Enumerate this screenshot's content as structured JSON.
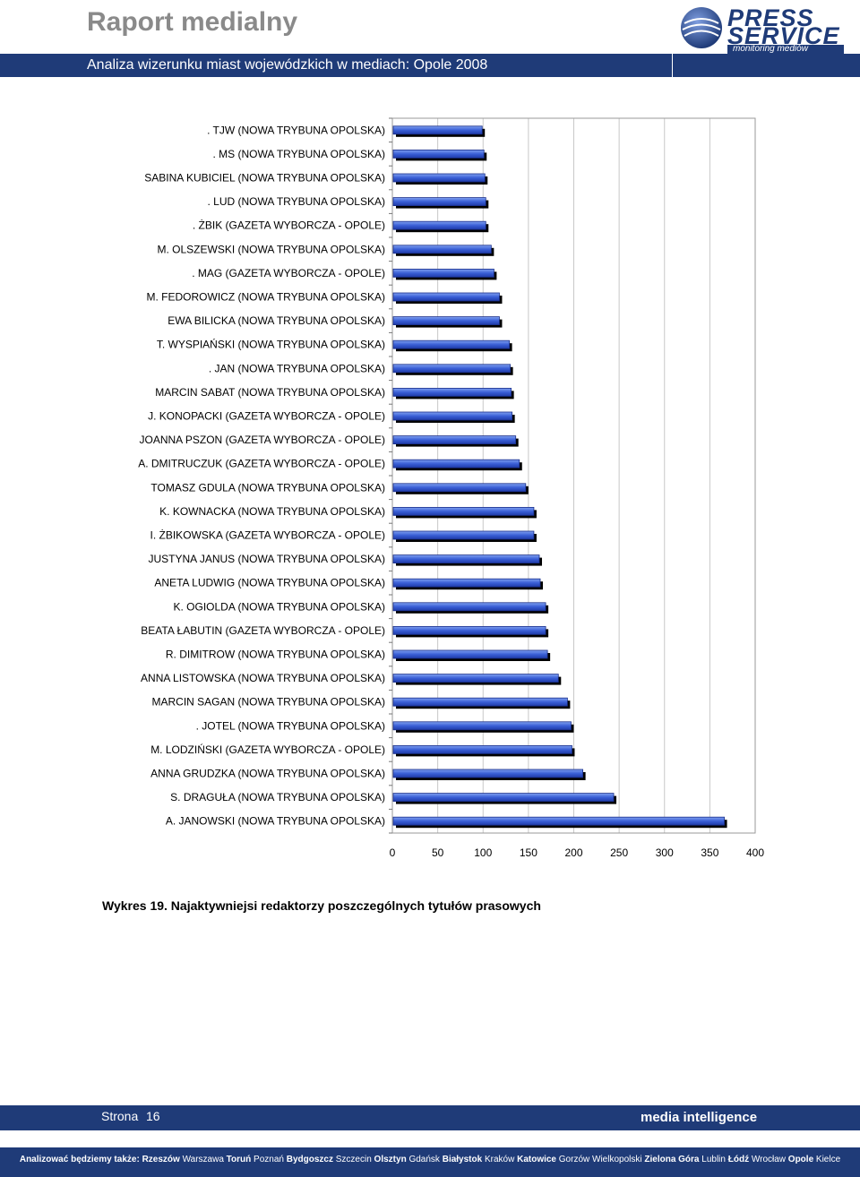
{
  "header": {
    "title": "Raport medialny",
    "subtitle": "Analiza wizerunku miast wojewódzkich w mediach: Opole 2008"
  },
  "logo": {
    "line1": "PRESS",
    "line2": "SERVICE",
    "tagline": "monitoring mediów"
  },
  "caption": "Wykres 19. Najaktywniejsi redaktorzy poszczególnych tytułów prasowych",
  "footer": {
    "page_label": "Strona",
    "page_number": "16",
    "slogan": "media intelligence",
    "cities_prefix": "Analizować będziemy także:",
    "cities": [
      {
        "name": "Rzeszów",
        "bold": true
      },
      {
        "name": "Warszawa",
        "bold": false
      },
      {
        "name": "Toruń",
        "bold": true
      },
      {
        "name": "Poznań",
        "bold": false
      },
      {
        "name": "Bydgoszcz",
        "bold": true
      },
      {
        "name": "Szczecin",
        "bold": false
      },
      {
        "name": "Olsztyn",
        "bold": true
      },
      {
        "name": "Gdańsk",
        "bold": false
      },
      {
        "name": "Białystok",
        "bold": true
      },
      {
        "name": "Kraków",
        "bold": false
      },
      {
        "name": "Katowice",
        "bold": true
      },
      {
        "name": "Gorzów Wielkopolski",
        "bold": false
      },
      {
        "name": "Zielona Góra",
        "bold": true
      },
      {
        "name": "Lublin",
        "bold": false
      },
      {
        "name": "Łódź",
        "bold": true
      },
      {
        "name": "Wrocław",
        "bold": false
      },
      {
        "name": "Opole",
        "bold": true
      },
      {
        "name": "Kielce",
        "bold": false
      }
    ]
  },
  "colors": {
    "brand": "#1f3b78",
    "bar": "#3a5fd6",
    "bar_light": "#7fa0f0",
    "bar_shadow": "#000000"
  },
  "chart_data": {
    "type": "bar",
    "orientation": "horizontal",
    "categories": [
      ". TJW (NOWA TRYBUNA OPOLSKA)",
      ". MS (NOWA TRYBUNA OPOLSKA)",
      "SABINA KUBICIEL (NOWA TRYBUNA OPOLSKA)",
      ". LUD (NOWA TRYBUNA OPOLSKA)",
      ". ŻBIK (GAZETA WYBORCZA - OPOLE)",
      "M. OLSZEWSKI (NOWA TRYBUNA OPOLSKA)",
      ". MAG (GAZETA WYBORCZA - OPOLE)",
      "M. FEDOROWICZ (NOWA TRYBUNA OPOLSKA)",
      "EWA BILICKA (NOWA TRYBUNA OPOLSKA)",
      "T. WYSPIAŃSKI (NOWA TRYBUNA OPOLSKA)",
      ". JAN (NOWA TRYBUNA OPOLSKA)",
      "MARCIN SABAT (NOWA TRYBUNA OPOLSKA)",
      "J. KONOPACKI (GAZETA WYBORCZA - OPOLE)",
      "JOANNA PSZON (GAZETA WYBORCZA - OPOLE)",
      "A. DMITRUCZUK (GAZETA WYBORCZA - OPOLE)",
      "TOMASZ GDULA (NOWA TRYBUNA OPOLSKA)",
      "K. KOWNACKA (NOWA TRYBUNA OPOLSKA)",
      "I. ŻBIKOWSKA (GAZETA WYBORCZA - OPOLE)",
      "JUSTYNA JANUS (NOWA TRYBUNA OPOLSKA)",
      "ANETA LUDWIG (NOWA TRYBUNA OPOLSKA)",
      "K. OGIOLDA (NOWA TRYBUNA OPOLSKA)",
      "BEATA ŁABUTIN (GAZETA WYBORCZA - OPOLE)",
      "R. DIMITROW (NOWA TRYBUNA OPOLSKA)",
      "ANNA LISTOWSKA (NOWA TRYBUNA OPOLSKA)",
      "MARCIN SAGAN (NOWA TRYBUNA OPOLSKA)",
      ". JOTEL (NOWA TRYBUNA OPOLSKA)",
      "M. LODZIŃSKI (GAZETA WYBORCZA - OPOLE)",
      "ANNA GRUDZKA (NOWA TRYBUNA OPOLSKA)",
      "S. DRAGUŁA (NOWA TRYBUNA OPOLSKA)",
      "A. JANOWSKI (NOWA TRYBUNA OPOLSKA)"
    ],
    "values": [
      98,
      100,
      101,
      102,
      102,
      108,
      111,
      117,
      117,
      128,
      129,
      130,
      131,
      135,
      139,
      146,
      155,
      155,
      161,
      162,
      168,
      168,
      170,
      182,
      192,
      196,
      197,
      209,
      243,
      365
    ],
    "xlim": [
      0,
      400
    ],
    "xticks": [
      "0",
      "50",
      "100",
      "150",
      "200",
      "250",
      "300",
      "350",
      "400"
    ],
    "grid": true,
    "legend": "none"
  }
}
